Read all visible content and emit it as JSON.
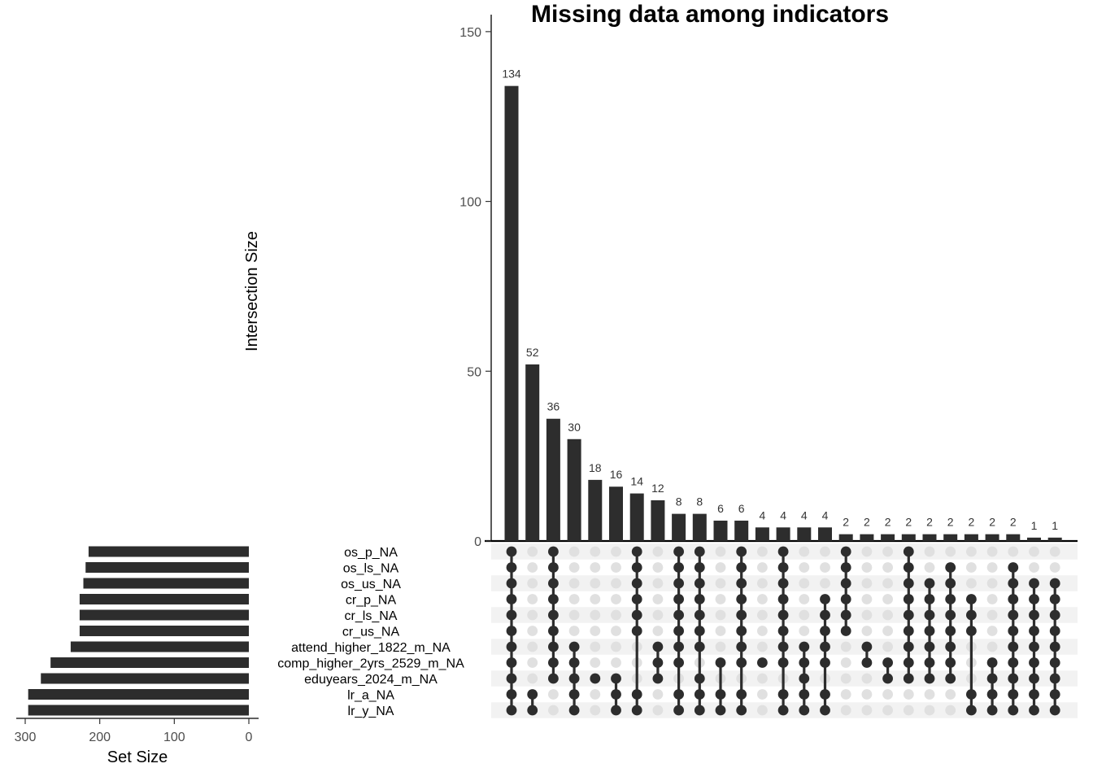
{
  "chart_data": {
    "type": "bar",
    "subtype": "upset",
    "title": "Missing data among indicators",
    "intersection_axis": {
      "label": "Intersection Size",
      "ylim": [
        0,
        155
      ],
      "ticks": [
        0,
        50,
        100,
        150
      ]
    },
    "set_size_axis": {
      "label": "Set Size",
      "xlim": [
        0,
        310
      ],
      "reversed": true,
      "ticks": [
        300,
        200,
        100,
        0
      ]
    },
    "sets": [
      {
        "name": "os_p_NA",
        "size": 215
      },
      {
        "name": "os_ls_NA",
        "size": 219
      },
      {
        "name": "os_us_NA",
        "size": 222
      },
      {
        "name": "cr_p_NA",
        "size": 227
      },
      {
        "name": "cr_ls_NA",
        "size": 227
      },
      {
        "name": "cr_us_NA",
        "size": 227
      },
      {
        "name": "attend_higher_1822_m_NA",
        "size": 239
      },
      {
        "name": "comp_higher_2yrs_2529_m_NA",
        "size": 266
      },
      {
        "name": "eduyears_2024_m_NA",
        "size": 279
      },
      {
        "name": "lr_a_NA",
        "size": 296
      },
      {
        "name": "lr_y_NA",
        "size": 296
      }
    ],
    "intersections": [
      {
        "size": 134,
        "sets": [
          0,
          1,
          2,
          3,
          4,
          5,
          6,
          7,
          8,
          9,
          10
        ]
      },
      {
        "size": 52,
        "sets": [
          9,
          10
        ]
      },
      {
        "size": 36,
        "sets": [
          0,
          1,
          2,
          3,
          4,
          5,
          6,
          7,
          8
        ]
      },
      {
        "size": 30,
        "sets": [
          6,
          7,
          8,
          9,
          10
        ]
      },
      {
        "size": 18,
        "sets": [
          8
        ]
      },
      {
        "size": 16,
        "sets": [
          8,
          9,
          10
        ]
      },
      {
        "size": 14,
        "sets": [
          0,
          1,
          2,
          3,
          4,
          5,
          9,
          10
        ]
      },
      {
        "size": 12,
        "sets": [
          6,
          7,
          8
        ]
      },
      {
        "size": 8,
        "sets": [
          0,
          1,
          2,
          3,
          4,
          5,
          6,
          7,
          9,
          10
        ]
      },
      {
        "size": 8,
        "sets": [
          0,
          1,
          2,
          3,
          4,
          5,
          6,
          8,
          9,
          10
        ]
      },
      {
        "size": 6,
        "sets": [
          7,
          9,
          10
        ]
      },
      {
        "size": 6,
        "sets": [
          0,
          1,
          2,
          3,
          4,
          5,
          6,
          7,
          9,
          10
        ]
      },
      {
        "size": 4,
        "sets": [
          7
        ]
      },
      {
        "size": 4,
        "sets": [
          0,
          1,
          2,
          3,
          4,
          5,
          6,
          7,
          9,
          10
        ]
      },
      {
        "size": 4,
        "sets": [
          6,
          7,
          8,
          9,
          10
        ]
      },
      {
        "size": 4,
        "sets": [
          3,
          4,
          5,
          6,
          7,
          9,
          10
        ]
      },
      {
        "size": 2,
        "sets": [
          0,
          1,
          2,
          3,
          4,
          5
        ]
      },
      {
        "size": 2,
        "sets": [
          6,
          7
        ]
      },
      {
        "size": 2,
        "sets": [
          7,
          8
        ]
      },
      {
        "size": 2,
        "sets": [
          0,
          1,
          2,
          3,
          4,
          5,
          6,
          7,
          8
        ]
      },
      {
        "size": 2,
        "sets": [
          2,
          3,
          4,
          5,
          6,
          7,
          8
        ]
      },
      {
        "size": 2,
        "sets": [
          1,
          2,
          3,
          4,
          5,
          6,
          7,
          8
        ]
      },
      {
        "size": 2,
        "sets": [
          3,
          4,
          5,
          9,
          10
        ]
      },
      {
        "size": 2,
        "sets": [
          7,
          8,
          9,
          10
        ]
      },
      {
        "size": 2,
        "sets": [
          1,
          2,
          3,
          4,
          5,
          6,
          7,
          8,
          9,
          10
        ]
      },
      {
        "size": 1,
        "sets": [
          2,
          3,
          4,
          5,
          6,
          7,
          8,
          9,
          10
        ]
      },
      {
        "size": 1,
        "sets": [
          2,
          3,
          4,
          5,
          6,
          7,
          8,
          9,
          10
        ]
      }
    ],
    "grid": false,
    "colors": {
      "bar": "#2d2d2d",
      "dot_on": "#2d2d2d",
      "dot_off": "#e0e0e0",
      "stripe": "#f2f2f2"
    }
  }
}
